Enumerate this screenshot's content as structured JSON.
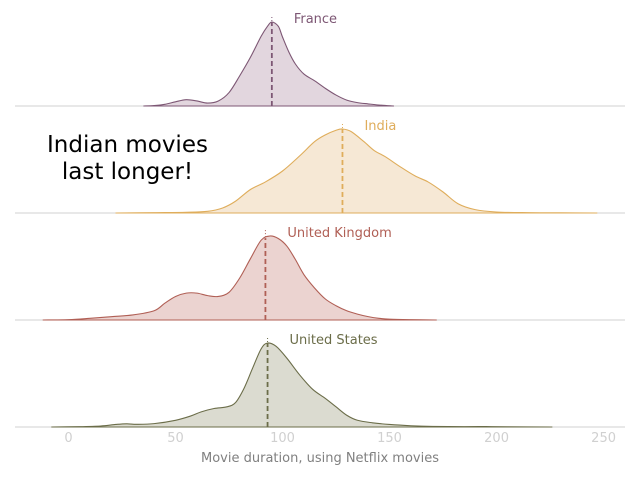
{
  "chart_data": {
    "type": "area",
    "subtype": "ridgeline-density",
    "xlabel": "Movie duration, using Netflix movies",
    "xlim": [
      -25,
      260
    ],
    "x_ticks": [
      0,
      50,
      100,
      150,
      200,
      250
    ],
    "annotation": "Indian movies\nlast longer!",
    "grid": false,
    "series": [
      {
        "name": "France",
        "color": "#7d5774",
        "fill": "#e2d6de",
        "median": 95,
        "range": [
          35,
          152
        ],
        "density": [
          [
            35,
            0
          ],
          [
            40,
            0.005
          ],
          [
            45,
            0.02
          ],
          [
            50,
            0.05
          ],
          [
            55,
            0.075
          ],
          [
            60,
            0.06
          ],
          [
            65,
            0.035
          ],
          [
            70,
            0.06
          ],
          [
            75,
            0.16
          ],
          [
            80,
            0.36
          ],
          [
            85,
            0.58
          ],
          [
            90,
            0.83
          ],
          [
            93,
            0.95
          ],
          [
            95,
            1.0
          ],
          [
            98,
            0.95
          ],
          [
            100,
            0.82
          ],
          [
            103,
            0.64
          ],
          [
            106,
            0.5
          ],
          [
            110,
            0.38
          ],
          [
            115,
            0.3
          ],
          [
            120,
            0.21
          ],
          [
            125,
            0.13
          ],
          [
            130,
            0.07
          ],
          [
            135,
            0.04
          ],
          [
            140,
            0.025
          ],
          [
            145,
            0.012
          ],
          [
            152,
            0
          ]
        ]
      },
      {
        "name": "India",
        "color": "#dfad5b",
        "fill": "#f6e8d5",
        "median": 128,
        "range": [
          22,
          247
        ],
        "density": [
          [
            22,
            0
          ],
          [
            40,
            0.004
          ],
          [
            55,
            0.008
          ],
          [
            65,
            0.02
          ],
          [
            72,
            0.06
          ],
          [
            78,
            0.14
          ],
          [
            85,
            0.28
          ],
          [
            92,
            0.37
          ],
          [
            100,
            0.5
          ],
          [
            108,
            0.68
          ],
          [
            115,
            0.85
          ],
          [
            120,
            0.93
          ],
          [
            125,
            0.985
          ],
          [
            128,
            1.0
          ],
          [
            132,
            0.97
          ],
          [
            138,
            0.85
          ],
          [
            143,
            0.74
          ],
          [
            148,
            0.67
          ],
          [
            155,
            0.55
          ],
          [
            162,
            0.44
          ],
          [
            168,
            0.37
          ],
          [
            175,
            0.25
          ],
          [
            182,
            0.11
          ],
          [
            190,
            0.04
          ],
          [
            200,
            0.012
          ],
          [
            215,
            0.004
          ],
          [
            230,
            0.002
          ],
          [
            247,
            0
          ]
        ]
      },
      {
        "name": "United Kingdom",
        "color": "#b05f55",
        "fill": "#ebd3d0",
        "median": 92,
        "range": [
          -12,
          172
        ],
        "density": [
          [
            -12,
            0
          ],
          [
            0,
            0.004
          ],
          [
            10,
            0.02
          ],
          [
            20,
            0.04
          ],
          [
            30,
            0.06
          ],
          [
            40,
            0.11
          ],
          [
            45,
            0.2
          ],
          [
            50,
            0.28
          ],
          [
            55,
            0.32
          ],
          [
            60,
            0.32
          ],
          [
            65,
            0.29
          ],
          [
            70,
            0.28
          ],
          [
            75,
            0.33
          ],
          [
            80,
            0.5
          ],
          [
            85,
            0.73
          ],
          [
            90,
            0.95
          ],
          [
            94,
            1.0
          ],
          [
            98,
            0.97
          ],
          [
            102,
            0.88
          ],
          [
            106,
            0.72
          ],
          [
            110,
            0.54
          ],
          [
            115,
            0.38
          ],
          [
            120,
            0.25
          ],
          [
            125,
            0.17
          ],
          [
            130,
            0.11
          ],
          [
            135,
            0.07
          ],
          [
            140,
            0.04
          ],
          [
            145,
            0.02
          ],
          [
            150,
            0.01
          ],
          [
            160,
            0.004
          ],
          [
            172,
            0
          ]
        ]
      },
      {
        "name": "United States",
        "color": "#6b6d49",
        "fill": "#dbdbd0",
        "median": 93,
        "range": [
          -8,
          226
        ],
        "density": [
          [
            -8,
            0
          ],
          [
            5,
            0.004
          ],
          [
            15,
            0.012
          ],
          [
            22,
            0.03
          ],
          [
            27,
            0.038
          ],
          [
            32,
            0.032
          ],
          [
            40,
            0.04
          ],
          [
            50,
            0.08
          ],
          [
            57,
            0.13
          ],
          [
            62,
            0.18
          ],
          [
            68,
            0.22
          ],
          [
            74,
            0.24
          ],
          [
            78,
            0.29
          ],
          [
            82,
            0.46
          ],
          [
            86,
            0.7
          ],
          [
            90,
            0.93
          ],
          [
            93,
            1.0
          ],
          [
            97,
            0.96
          ],
          [
            102,
            0.82
          ],
          [
            108,
            0.62
          ],
          [
            114,
            0.45
          ],
          [
            120,
            0.34
          ],
          [
            125,
            0.24
          ],
          [
            130,
            0.14
          ],
          [
            135,
            0.08
          ],
          [
            142,
            0.05
          ],
          [
            150,
            0.03
          ],
          [
            160,
            0.015
          ],
          [
            170,
            0.007
          ],
          [
            185,
            0.004
          ],
          [
            195,
            0.005
          ],
          [
            205,
            0.002
          ],
          [
            226,
            0
          ]
        ]
      }
    ]
  }
}
